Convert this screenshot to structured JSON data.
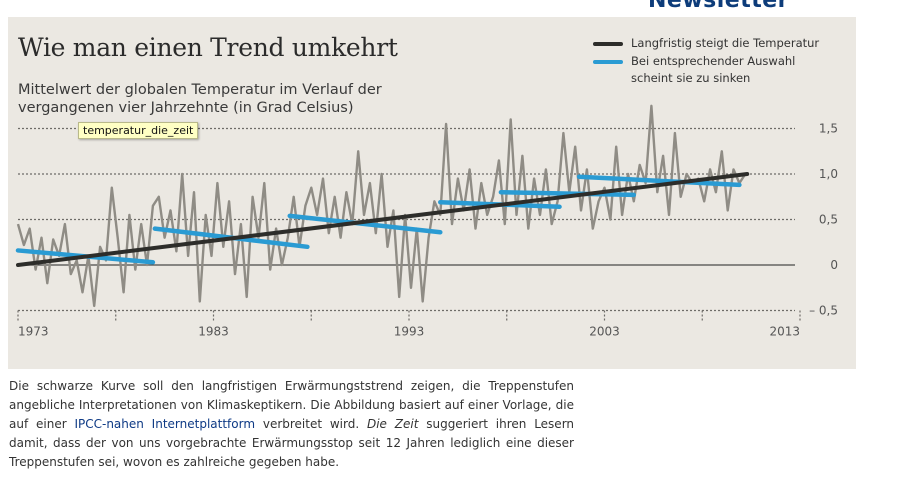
{
  "page": {
    "header_clipped_text": "Newsletter",
    "tooltip": "temperatur_die_zeit",
    "caption": {
      "part1": "Die schwarze Kurve soll den langfristigen Erwärmungststrend zeigen, die Treppenstufen angebliche Interpretationen von Klimaskeptikern.  Die Abbildung basiert auf einer Vorlage, die auf einer ",
      "link": "IPCC-nahen Internetplattform",
      "part2": " verbreitet wird. ",
      "em": "Die Zeit",
      "part3": " suggeriert ihren Lesern damit, dass der von uns vorgebrachte Erwärmungsstop seit 12 Jahren lediglich eine dieser Treppenstufen sei, wovon es zahlreiche gegeben habe."
    }
  },
  "colors": {
    "temperature": "#8f8c85",
    "trend": "#2d2d2a",
    "steps": "#2a9bd3",
    "link": "#0e3a85",
    "background": "#ebe8e2"
  },
  "chart_data": {
    "type": "line",
    "title": "Wie man einen Trend umkehrt",
    "subtitle": "Mittelwert der globalen Temperatur im Verlauf der vergangenen vier Jahrzehnte (in Grad Celsius)",
    "xlabel": "",
    "ylabel": "Grad Celsius",
    "xlim": [
      1973,
      2013
    ],
    "ylim": [
      -0.5,
      1.5
    ],
    "x_ticks": [
      1973,
      1983,
      1993,
      2003,
      2013
    ],
    "x_tick_labels": [
      "1973",
      "1983",
      "1993",
      "2003",
      "2013"
    ],
    "y_ticks": [
      -0.5,
      0,
      0.5,
      1.0,
      1.5
    ],
    "y_tick_labels": [
      "– 0,5",
      "0",
      "0,5",
      "1,0",
      "1,5"
    ],
    "grid": "horizontal dotted",
    "legend_position": "top-right",
    "legend": [
      {
        "label": "Langfristig steigt die Temperatur",
        "series": "trend"
      },
      {
        "label": "Bei entsprechender Auswahl scheint sie zu sinken",
        "series": "steps"
      }
    ],
    "series": [
      {
        "name": "temperature",
        "x": [
          1973.0,
          1973.3,
          1973.6,
          1973.9,
          1974.2,
          1974.5,
          1974.8,
          1975.1,
          1975.4,
          1975.7,
          1976.0,
          1976.3,
          1976.6,
          1976.9,
          1977.2,
          1977.5,
          1977.8,
          1978.1,
          1978.4,
          1978.7,
          1979.0,
          1979.3,
          1979.6,
          1979.9,
          1980.2,
          1980.5,
          1980.8,
          1981.1,
          1981.4,
          1981.7,
          1982.0,
          1982.3,
          1982.6,
          1982.9,
          1983.2,
          1983.5,
          1983.8,
          1984.1,
          1984.4,
          1984.7,
          1985.0,
          1985.3,
          1985.6,
          1985.9,
          1986.2,
          1986.5,
          1986.8,
          1987.1,
          1987.4,
          1987.7,
          1988.0,
          1988.3,
          1988.6,
          1988.9,
          1989.2,
          1989.5,
          1989.8,
          1990.1,
          1990.4,
          1990.7,
          1991.0,
          1991.3,
          1991.6,
          1991.9,
          1992.2,
          1992.5,
          1992.8,
          1993.1,
          1993.4,
          1993.7,
          1994.0,
          1994.3,
          1994.6,
          1994.9,
          1995.2,
          1995.5,
          1995.8,
          1996.1,
          1996.4,
          1996.7,
          1997.0,
          1997.3,
          1997.6,
          1997.9,
          1998.2,
          1998.5,
          1998.8,
          1999.1,
          1999.4,
          1999.7,
          2000.0,
          2000.3,
          2000.6,
          2000.9,
          2001.2,
          2001.5,
          2001.8,
          2002.1,
          2002.4,
          2002.7,
          2003.0,
          2003.3,
          2003.6,
          2003.9,
          2004.2,
          2004.5,
          2004.8,
          2005.1,
          2005.4,
          2005.7,
          2006.0,
          2006.3,
          2006.6,
          2006.9,
          2007.2,
          2007.5,
          2007.8,
          2008.1,
          2008.4,
          2008.7,
          2009.0,
          2009.3,
          2009.6,
          2009.9,
          2010.2
        ],
        "values": [
          0.45,
          0.22,
          0.4,
          -0.05,
          0.3,
          -0.2,
          0.28,
          0.1,
          0.45,
          -0.1,
          0.05,
          -0.3,
          0.1,
          -0.45,
          0.2,
          0.05,
          0.85,
          0.3,
          -0.3,
          0.55,
          -0.05,
          0.45,
          0.0,
          0.65,
          0.75,
          0.3,
          0.6,
          0.15,
          1.0,
          0.1,
          0.8,
          -0.4,
          0.55,
          0.1,
          0.9,
          0.2,
          0.7,
          -0.1,
          0.45,
          -0.35,
          0.75,
          0.3,
          0.9,
          -0.05,
          0.4,
          0.0,
          0.3,
          0.75,
          0.2,
          0.65,
          0.85,
          0.55,
          0.95,
          0.35,
          0.75,
          0.3,
          0.8,
          0.45,
          1.25,
          0.55,
          0.9,
          0.35,
          1.0,
          0.2,
          0.6,
          -0.35,
          0.55,
          -0.25,
          0.4,
          -0.4,
          0.3,
          0.7,
          0.55,
          1.55,
          0.45,
          0.95,
          0.6,
          1.05,
          0.4,
          0.9,
          0.55,
          0.75,
          1.15,
          0.45,
          1.6,
          0.55,
          1.2,
          0.4,
          0.95,
          0.55,
          1.05,
          0.45,
          0.7,
          1.45,
          0.8,
          1.3,
          0.6,
          1.05,
          0.4,
          0.7,
          0.85,
          0.5,
          1.3,
          0.55,
          1.0,
          0.7,
          1.1,
          0.9,
          1.75,
          0.8,
          1.2,
          0.55,
          1.45,
          0.75,
          1.0,
          0.9,
          0.95,
          0.7,
          1.05,
          0.8,
          1.25,
          0.6,
          1.05,
          0.9,
          1.0
        ]
      },
      {
        "name": "trend",
        "x": [
          1973.0,
          2010.3
        ],
        "values": [
          0.0,
          1.0
        ]
      },
      {
        "name": "steps",
        "segments": [
          {
            "x": [
              1973.0,
              1979.9
            ],
            "values": [
              0.16,
              0.03
            ]
          },
          {
            "x": [
              1980.0,
              1987.8
            ],
            "values": [
              0.4,
              0.2
            ]
          },
          {
            "x": [
              1986.9,
              1994.6
            ],
            "values": [
              0.54,
              0.36
            ]
          },
          {
            "x": [
              1994.6,
              2000.7
            ],
            "values": [
              0.69,
              0.64
            ]
          },
          {
            "x": [
              1997.7,
              2004.5
            ],
            "values": [
              0.8,
              0.77
            ]
          },
          {
            "x": [
              2001.7,
              2009.9
            ],
            "values": [
              0.97,
              0.88
            ]
          }
        ]
      }
    ]
  }
}
